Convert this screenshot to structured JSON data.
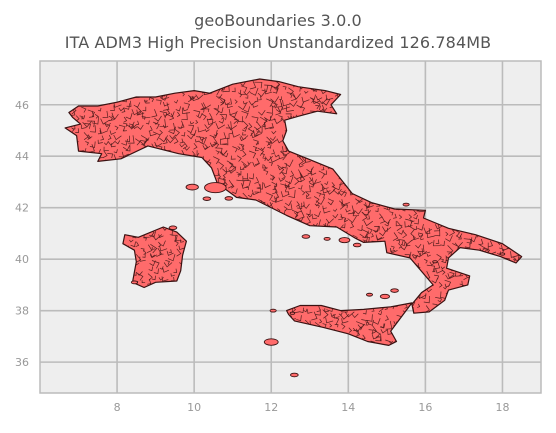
{
  "figure": {
    "title_line_1": "geoBoundaries 3.0.0",
    "title_line_2": "ITA ADM3 High Precision Unstandardized 126.784MB"
  },
  "chart_data": {
    "type": "map",
    "xlim": [
      6.0,
      19.0
    ],
    "ylim": [
      34.8,
      47.7
    ],
    "xticks": [
      8,
      10,
      12,
      14,
      16,
      18
    ],
    "yticks": [
      36,
      38,
      40,
      42,
      44,
      46
    ],
    "grid": true,
    "colors": {
      "background": "#eeeeee",
      "grid": "#bbbbbb",
      "fill": "#ff6b6b",
      "edge": "#3a1212",
      "tick_label": "#999999",
      "title": "#555555"
    },
    "regions": [
      {
        "name": "mainland",
        "lonlat": [
          [
            6.75,
            45.7
          ],
          [
            7.0,
            45.95
          ],
          [
            7.5,
            45.95
          ],
          [
            8.0,
            46.1
          ],
          [
            8.5,
            46.3
          ],
          [
            9.0,
            46.3
          ],
          [
            9.5,
            46.45
          ],
          [
            10.0,
            46.55
          ],
          [
            10.4,
            46.45
          ],
          [
            11.0,
            46.8
          ],
          [
            11.7,
            47.0
          ],
          [
            12.2,
            46.9
          ],
          [
            12.7,
            46.7
          ],
          [
            13.4,
            46.55
          ],
          [
            13.8,
            46.4
          ],
          [
            13.55,
            46.0
          ],
          [
            13.7,
            45.65
          ],
          [
            13.2,
            45.75
          ],
          [
            12.7,
            45.55
          ],
          [
            12.35,
            45.4
          ],
          [
            12.4,
            45.0
          ],
          [
            12.3,
            44.6
          ],
          [
            12.45,
            44.2
          ],
          [
            12.95,
            43.9
          ],
          [
            13.6,
            43.5
          ],
          [
            14.1,
            42.55
          ],
          [
            14.6,
            42.2
          ],
          [
            15.2,
            41.95
          ],
          [
            16.0,
            41.9
          ],
          [
            15.95,
            41.6
          ],
          [
            16.6,
            41.2
          ],
          [
            17.3,
            40.95
          ],
          [
            18.0,
            40.6
          ],
          [
            18.5,
            40.1
          ],
          [
            18.35,
            39.85
          ],
          [
            17.95,
            40.1
          ],
          [
            17.4,
            40.35
          ],
          [
            16.9,
            40.45
          ],
          [
            16.6,
            40.05
          ],
          [
            16.55,
            39.65
          ],
          [
            17.15,
            39.35
          ],
          [
            17.1,
            39.0
          ],
          [
            16.6,
            38.8
          ],
          [
            16.5,
            38.4
          ],
          [
            16.1,
            37.95
          ],
          [
            15.7,
            37.9
          ],
          [
            15.65,
            38.25
          ],
          [
            15.9,
            38.7
          ],
          [
            16.2,
            39.0
          ],
          [
            15.8,
            39.7
          ],
          [
            15.6,
            40.05
          ],
          [
            15.0,
            40.25
          ],
          [
            14.95,
            40.7
          ],
          [
            14.4,
            40.65
          ],
          [
            14.2,
            40.8
          ],
          [
            13.7,
            41.25
          ],
          [
            13.0,
            41.3
          ],
          [
            12.4,
            41.7
          ],
          [
            11.6,
            42.3
          ],
          [
            11.1,
            42.4
          ],
          [
            10.6,
            42.95
          ],
          [
            10.45,
            43.55
          ],
          [
            10.2,
            43.95
          ],
          [
            9.6,
            44.1
          ],
          [
            8.8,
            44.4
          ],
          [
            8.1,
            43.9
          ],
          [
            7.5,
            43.8
          ],
          [
            7.6,
            44.1
          ],
          [
            7.0,
            44.2
          ],
          [
            6.95,
            44.8
          ],
          [
            6.65,
            45.1
          ],
          [
            7.05,
            45.25
          ],
          [
            6.85,
            45.5
          ]
        ]
      },
      {
        "name": "sicily",
        "lonlat": [
          [
            12.4,
            38.0
          ],
          [
            12.75,
            38.2
          ],
          [
            13.3,
            38.2
          ],
          [
            13.8,
            38.0
          ],
          [
            14.4,
            38.05
          ],
          [
            15.1,
            38.15
          ],
          [
            15.65,
            38.3
          ],
          [
            15.3,
            37.6
          ],
          [
            15.1,
            37.2
          ],
          [
            15.25,
            36.8
          ],
          [
            15.05,
            36.65
          ],
          [
            14.5,
            36.8
          ],
          [
            14.0,
            37.1
          ],
          [
            13.35,
            37.35
          ],
          [
            12.6,
            37.6
          ],
          [
            12.45,
            37.85
          ]
        ]
      },
      {
        "name": "sardinia",
        "lonlat": [
          [
            8.2,
            40.95
          ],
          [
            8.55,
            40.85
          ],
          [
            9.2,
            41.25
          ],
          [
            9.55,
            41.05
          ],
          [
            9.8,
            40.7
          ],
          [
            9.7,
            40.15
          ],
          [
            9.65,
            39.55
          ],
          [
            9.55,
            39.15
          ],
          [
            9.0,
            39.1
          ],
          [
            8.7,
            38.9
          ],
          [
            8.4,
            39.1
          ],
          [
            8.45,
            39.5
          ],
          [
            8.5,
            39.9
          ],
          [
            8.45,
            40.35
          ],
          [
            8.15,
            40.6
          ]
        ]
      }
    ],
    "islands": [
      [
        9.95,
        42.8,
        0.16
      ],
      [
        10.55,
        42.78,
        0.28
      ],
      [
        10.33,
        42.35,
        0.1
      ],
      [
        10.9,
        42.36,
        0.1
      ],
      [
        12.9,
        40.88,
        0.1
      ],
      [
        13.45,
        40.79,
        0.08
      ],
      [
        13.9,
        40.74,
        0.14
      ],
      [
        14.23,
        40.55,
        0.1
      ],
      [
        14.95,
        38.55,
        0.12
      ],
      [
        14.55,
        38.62,
        0.08
      ],
      [
        15.2,
        38.78,
        0.1
      ],
      [
        12.05,
        38.0,
        0.08
      ],
      [
        12.55,
        37.9,
        0.06
      ],
      [
        12.0,
        36.78,
        0.18
      ],
      [
        12.6,
        35.5,
        0.1
      ],
      [
        9.45,
        41.22,
        0.1
      ],
      [
        8.45,
        39.1,
        0.08
      ],
      [
        15.5,
        42.12,
        0.08
      ],
      [
        18.0,
        40.2,
        0.06
      ],
      [
        16.25,
        39.9,
        0.06
      ]
    ]
  }
}
